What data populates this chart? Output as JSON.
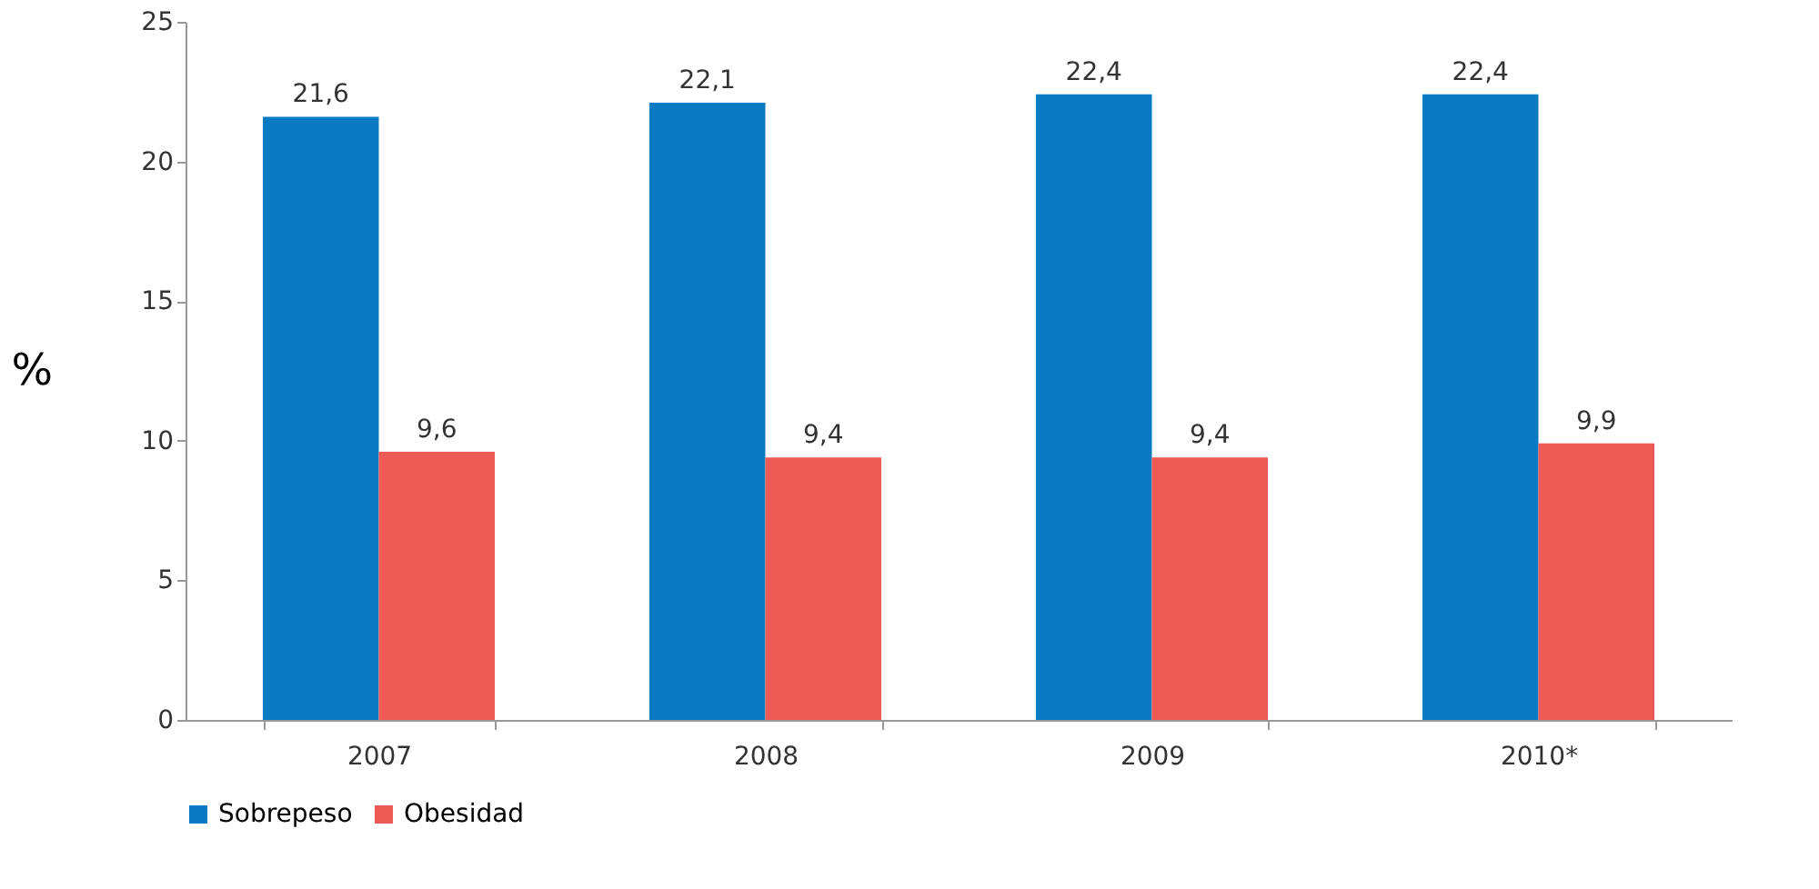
{
  "chart_data": {
    "type": "bar",
    "ylabel": "%",
    "categories": [
      "2007",
      "2008",
      "2009",
      "2010*"
    ],
    "series": [
      {
        "name": "Sobrepeso",
        "color": "#0a7bc3",
        "values": [
          21.6,
          22.1,
          22.4,
          22.4
        ],
        "value_labels": [
          "21,6",
          "22,1",
          "22,4",
          "22,4"
        ]
      },
      {
        "name": "Obesidad",
        "color": "#ee5a55",
        "values": [
          9.6,
          9.4,
          9.4,
          9.9
        ],
        "value_labels": [
          "9,6",
          "9,4",
          "9,4",
          "9,9"
        ]
      }
    ],
    "ylim": [
      0,
      25
    ],
    "yticks": [
      0,
      5,
      10,
      15,
      20,
      25
    ],
    "grid": false,
    "legend": "bottom"
  }
}
